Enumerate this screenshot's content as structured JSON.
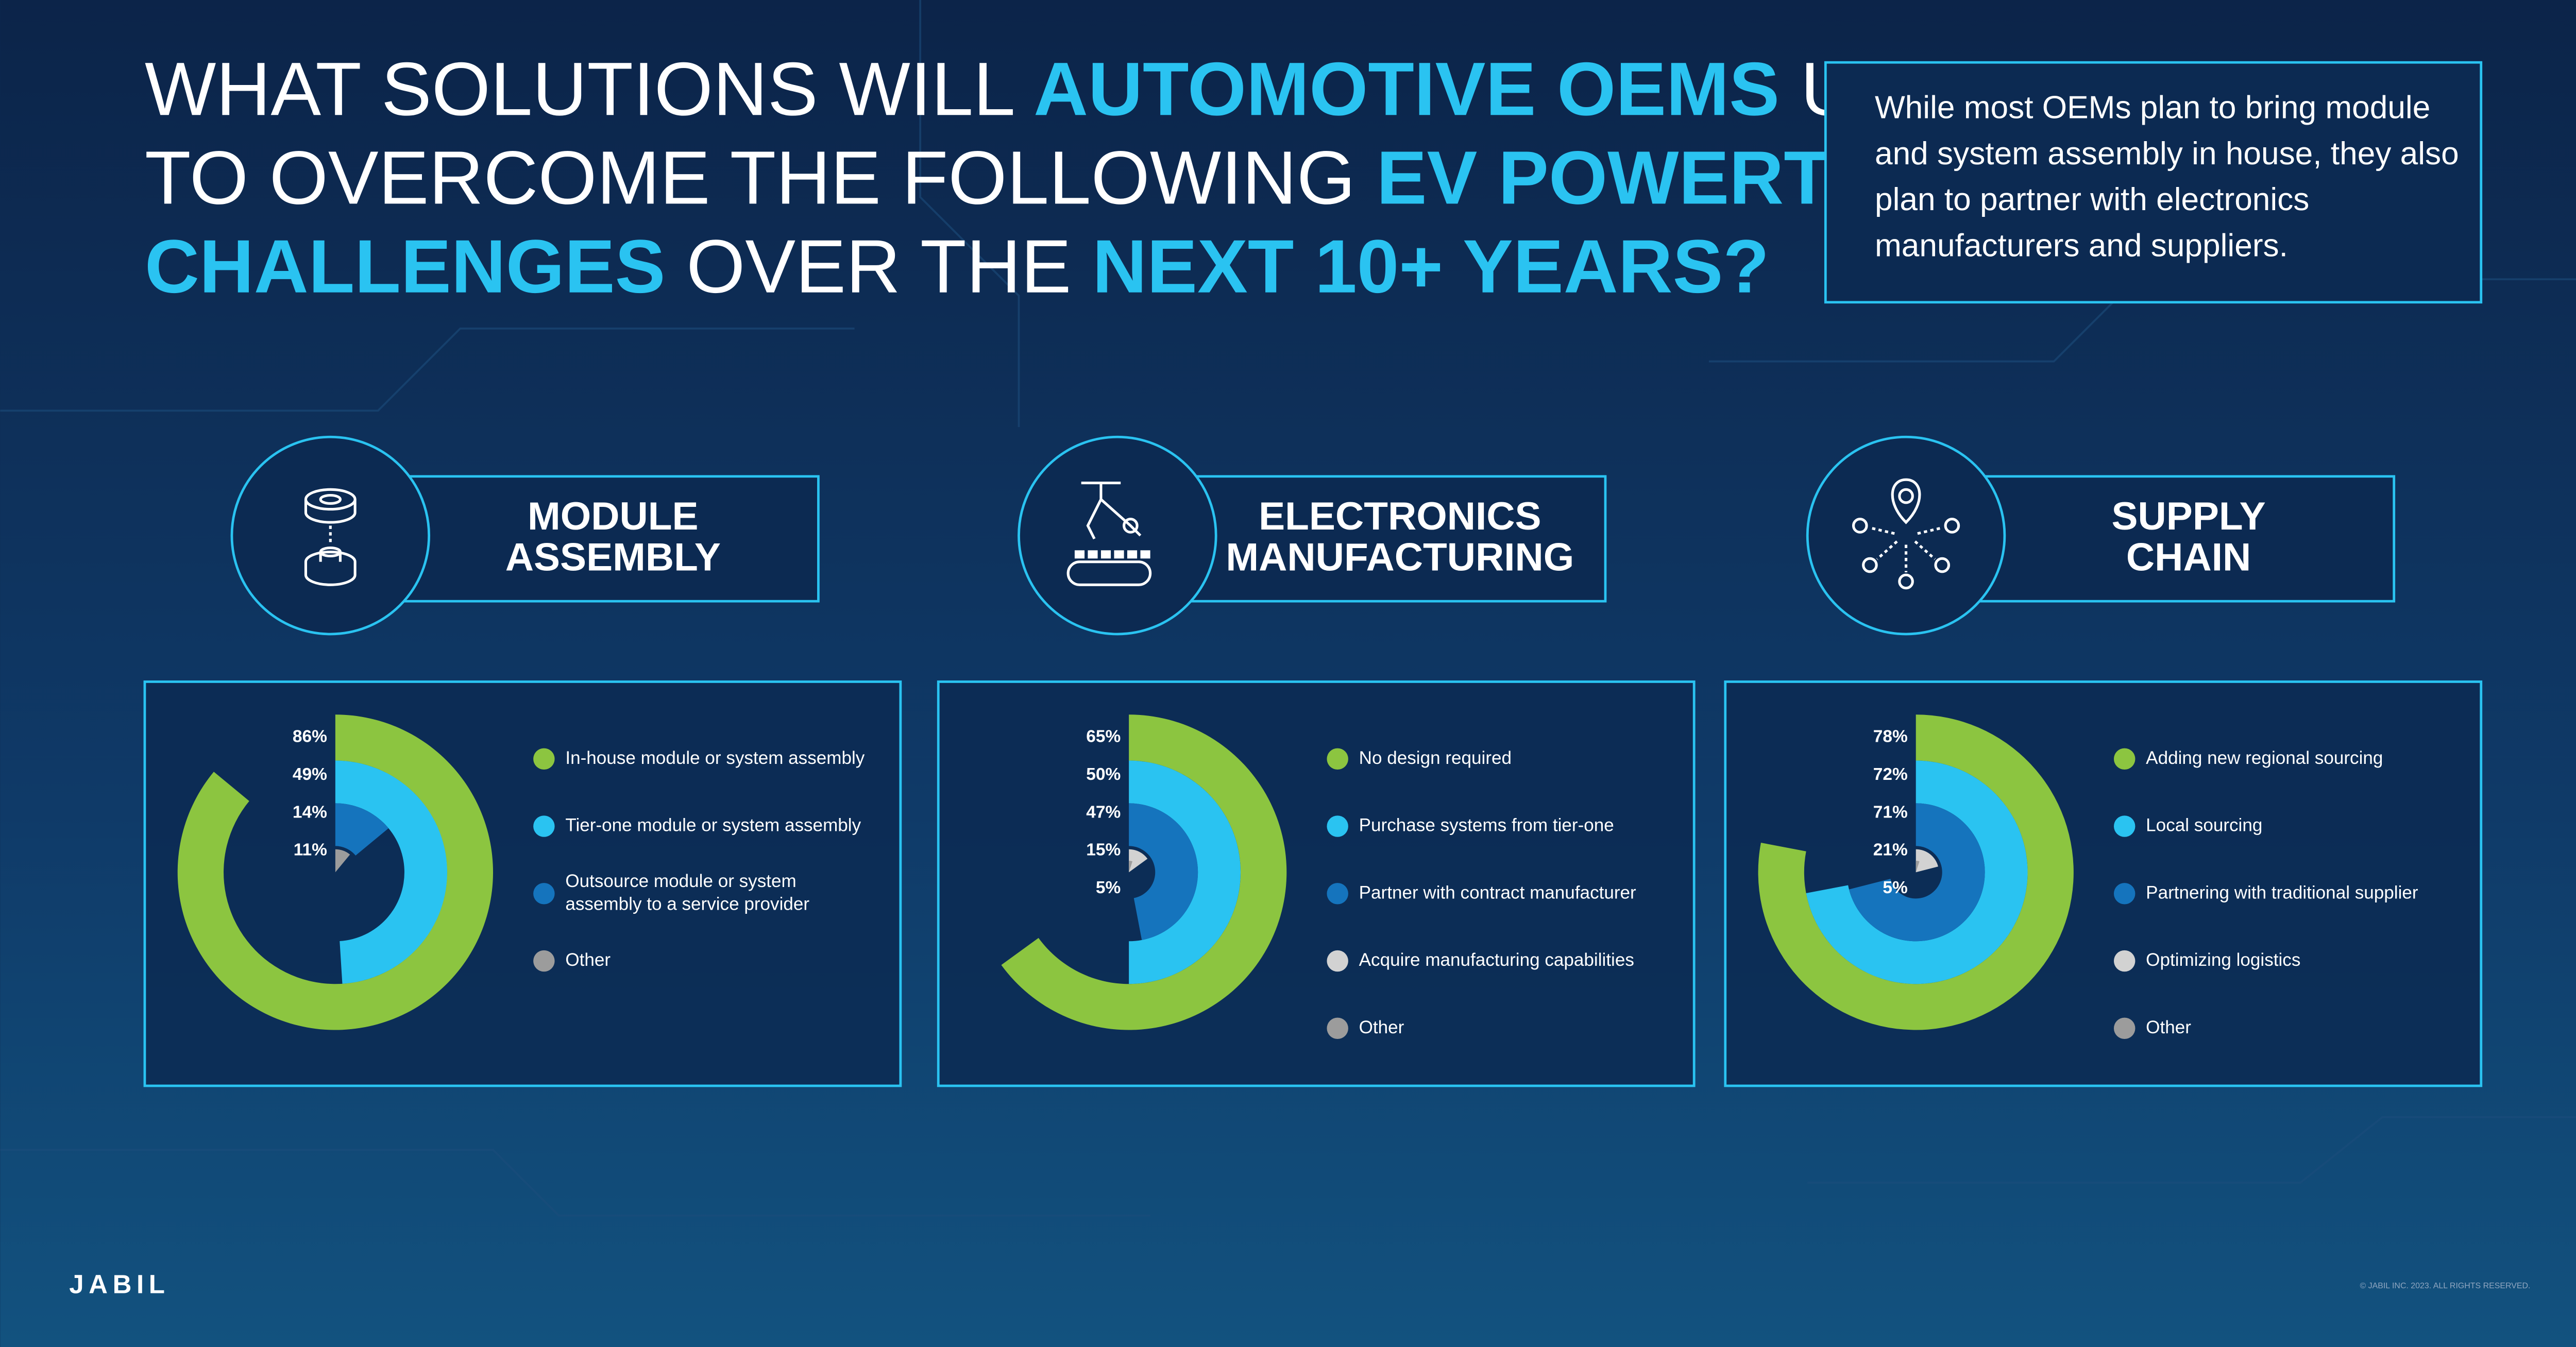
{
  "title": {
    "lines": [
      [
        {
          "text": "WHAT SOLUTIONS WILL ",
          "highlight": false
        },
        {
          "text": "AUTOMOTIVE OEMS",
          "highlight": true
        },
        {
          "text": " USE",
          "highlight": false
        }
      ],
      [
        {
          "text": "TO OVERCOME THE FOLLOWING ",
          "highlight": false
        },
        {
          "text": "EV POWERTRAIN",
          "highlight": true
        }
      ],
      [
        {
          "text": "CHALLENGES",
          "highlight": true
        },
        {
          "text": " OVER THE ",
          "highlight": false
        },
        {
          "text": "NEXT 10+ YEARS?",
          "highlight": true
        }
      ]
    ]
  },
  "note": "While most OEMs plan to bring module and system assembly in house, they also plan to partner with electronics manufacturers and suppliers.",
  "logo": "JABIL",
  "copyright": "© JABIL INC. 2023. ALL RIGHTS RESERVED.",
  "chart_data": [
    {
      "type": "radial_bar",
      "title": [
        "MODULE",
        "ASSEMBLY"
      ],
      "icon": "module",
      "categories": [
        "In-house module or system assembly",
        "Tier-one module or system assembly",
        "Outsource module or system assembly to a service provider",
        "Other"
      ],
      "values": [
        86,
        49,
        14,
        11
      ],
      "value_labels": [
        "86%",
        "49%",
        "14%",
        "11%"
      ],
      "colors": [
        "#8cc540",
        "#2ac3f1",
        "#1574bd",
        "#9c9c9c"
      ]
    },
    {
      "type": "radial_bar",
      "title": [
        "ELECTRONICS",
        "MANUFACTURING"
      ],
      "icon": "robot",
      "categories": [
        "No design required",
        "Purchase systems from tier-one",
        "Partner with contract manufacturer",
        "Acquire manufacturing capabilities",
        "Other"
      ],
      "values": [
        65,
        50,
        47,
        15,
        5
      ],
      "value_labels": [
        "65%",
        "50%",
        "47%",
        "15%",
        "5%"
      ],
      "colors": [
        "#8cc540",
        "#2ac3f1",
        "#1574bd",
        "#d2d2d2",
        "#9c9c9c"
      ]
    },
    {
      "type": "radial_bar",
      "title": [
        "SUPPLY",
        "CHAIN"
      ],
      "icon": "supply",
      "categories": [
        "Adding new regional sourcing",
        "Local sourcing",
        "Partnering with traditional supplier",
        "Optimizing logistics",
        "Other"
      ],
      "values": [
        78,
        72,
        71,
        21,
        5
      ],
      "value_labels": [
        "78%",
        "72%",
        "71%",
        "21%",
        "5%"
      ],
      "colors": [
        "#8cc540",
        "#2ac3f1",
        "#1574bd",
        "#d2d2d2",
        "#9c9c9c"
      ]
    }
  ]
}
